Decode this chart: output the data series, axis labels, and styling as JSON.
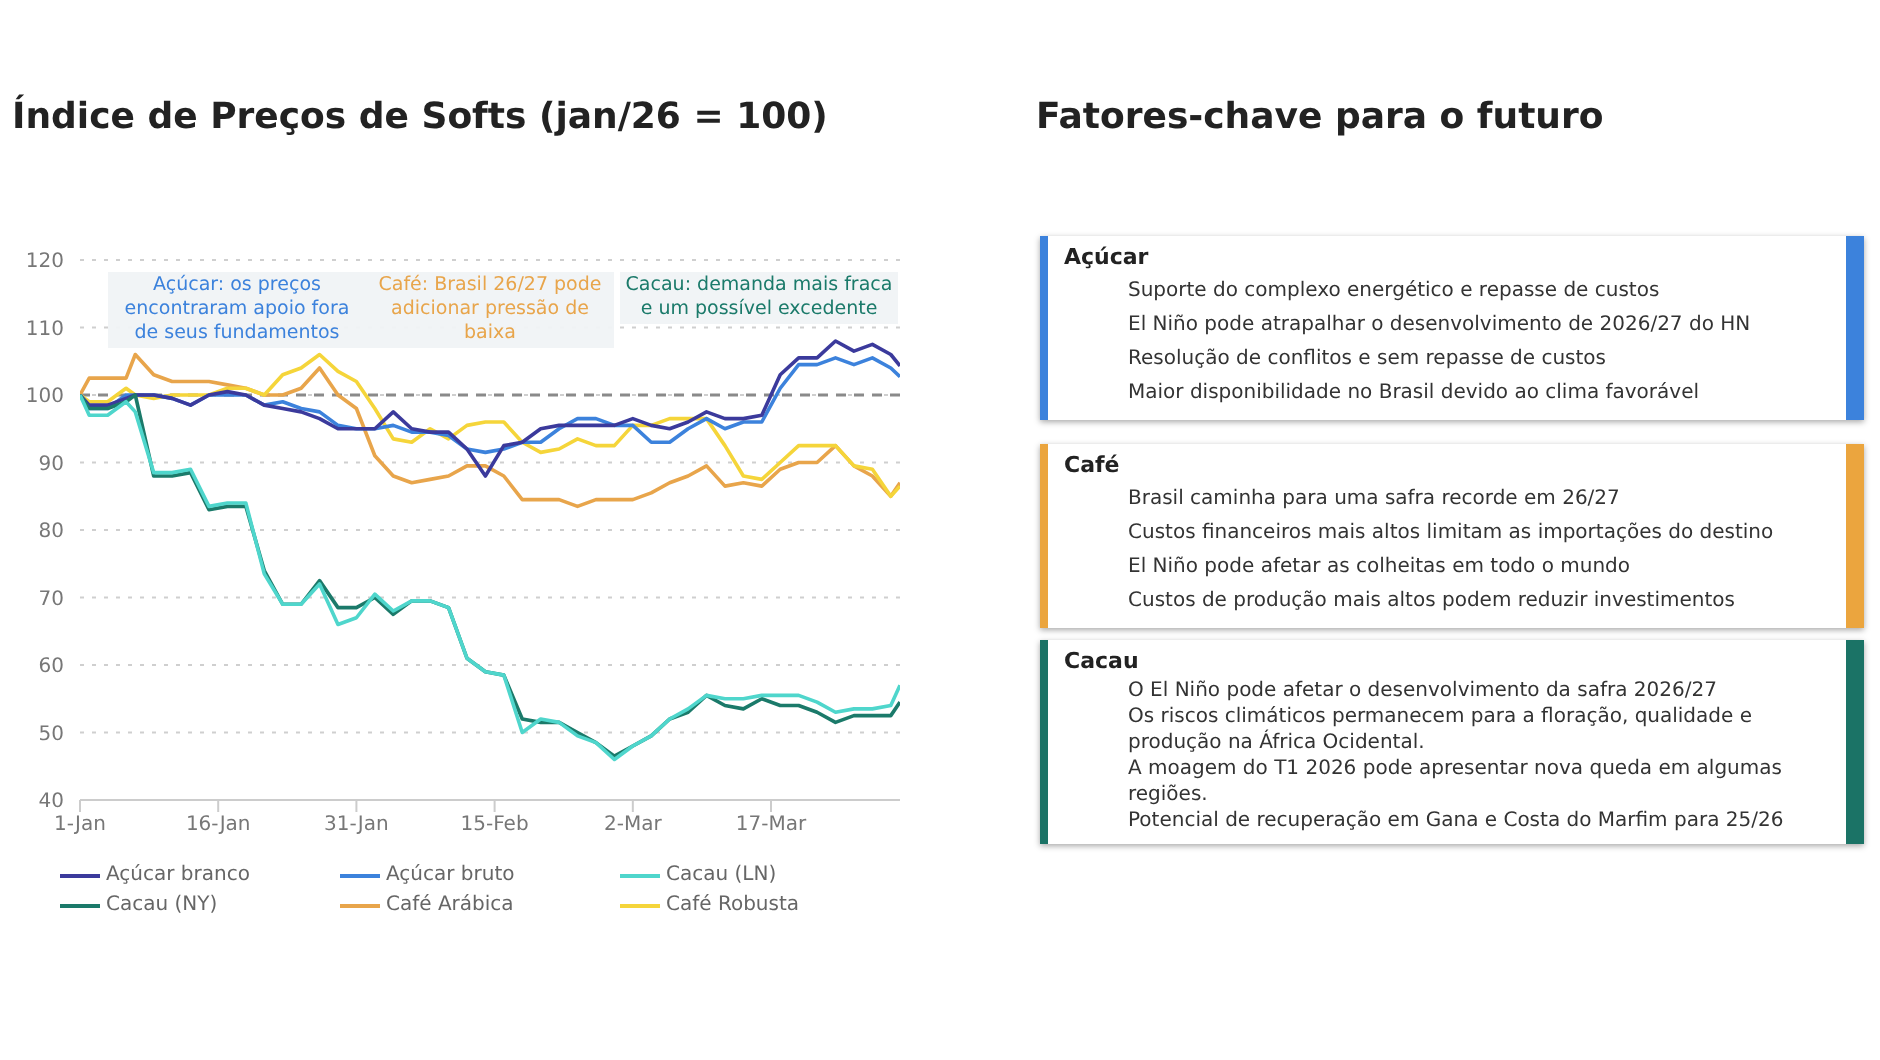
{
  "chart_data": [
    {
      "type": "line",
      "title": "Índice de Preços de Softs (jan/26 = 100)",
      "x": [
        "2026-01-01",
        "2026-01-02",
        "2026-01-04",
        "2026-01-06",
        "2026-01-07",
        "2026-01-09",
        "2026-01-11",
        "2026-01-13",
        "2026-01-15",
        "2026-01-17",
        "2026-01-19",
        "2026-01-21",
        "2026-01-23",
        "2026-01-25",
        "2026-01-27",
        "2026-01-29",
        "2026-01-31",
        "2026-02-02",
        "2026-02-04",
        "2026-02-06",
        "2026-02-08",
        "2026-02-10",
        "2026-02-12",
        "2026-02-14",
        "2026-02-16",
        "2026-02-18",
        "2026-02-20",
        "2026-02-22",
        "2026-02-24",
        "2026-02-26",
        "2026-02-28",
        "2026-03-02",
        "2026-03-04",
        "2026-03-06",
        "2026-03-08",
        "2026-03-10",
        "2026-03-12",
        "2026-03-14",
        "2026-03-16",
        "2026-03-18",
        "2026-03-20",
        "2026-03-22",
        "2026-03-24",
        "2026-03-26",
        "2026-03-28",
        "2026-03-30",
        "2026-03-31"
      ],
      "series": [
        {
          "name": "Café Arábica",
          "color": "#e8a54b",
          "values": [
            100,
            102.5,
            102.5,
            102.5,
            106,
            103,
            102,
            102,
            102,
            101.5,
            101,
            100,
            100,
            101,
            104,
            100,
            98,
            91,
            88,
            87,
            87.5,
            88,
            89.5,
            89.5,
            88,
            84.5,
            84.5,
            84.5,
            83.5,
            84.5,
            84.5,
            84.5,
            85.5,
            87,
            88,
            89.5,
            86.5,
            87,
            86.5,
            89,
            90,
            90,
            92.5,
            89.5,
            88,
            85,
            87
          ]
        },
        {
          "name": "Café Robusta",
          "color": "#f5d53a",
          "values": [
            100,
            99,
            99,
            101,
            100,
            99.5,
            100,
            100,
            100,
            101,
            101,
            100,
            103,
            104,
            106,
            103.5,
            102,
            98,
            93.5,
            93,
            95,
            93.5,
            95.5,
            96,
            96,
            93,
            91.5,
            92,
            93.5,
            92.5,
            92.5,
            95.5,
            95.5,
            96.5,
            96.5,
            96.5,
            92.5,
            88,
            87.5,
            90,
            92.5,
            92.5,
            92.5,
            89.5,
            89,
            85,
            86.5
          ]
        },
        {
          "name": "Açúcar bruto",
          "color": "#3c82dc",
          "values": [
            100,
            98,
            98,
            100,
            100,
            100,
            99.5,
            98.5,
            100,
            100,
            100,
            98.5,
            99,
            98,
            97.5,
            95.5,
            95,
            95,
            95.5,
            94.5,
            94.5,
            94,
            92,
            91.5,
            92,
            93,
            93,
            95,
            96.5,
            96.5,
            95.5,
            95.5,
            93,
            93,
            95,
            96.5,
            95,
            96,
            96,
            101,
            104.5,
            104.5,
            105.5,
            104.5,
            105.5,
            104,
            102.7
          ]
        },
        {
          "name": "Açúcar branco",
          "color": "#3b3a9c",
          "values": [
            100,
            98.5,
            98.5,
            99.5,
            100,
            100,
            99.5,
            98.5,
            100,
            100.5,
            100,
            98.5,
            98,
            97.5,
            96.5,
            95,
            95,
            95,
            97.5,
            95,
            94.5,
            94.5,
            92,
            88,
            92.5,
            93,
            95,
            95.5,
            95.5,
            95.5,
            95.5,
            96.5,
            95.5,
            95,
            96,
            97.5,
            96.5,
            96.5,
            97,
            103,
            105.5,
            105.5,
            108,
            106.5,
            107.5,
            106,
            104.3
          ]
        },
        {
          "name": "Cacau (NY)",
          "color": "#1b7a6a",
          "values": [
            100,
            98,
            98,
            99,
            100,
            88,
            88,
            88.5,
            83,
            83.5,
            83.5,
            74,
            69,
            69,
            72.5,
            68.5,
            68.5,
            70,
            67.5,
            69.5,
            69.5,
            68.5,
            61,
            59,
            58.5,
            52,
            51.5,
            51.5,
            50,
            48.5,
            46.5,
            48,
            49.5,
            52,
            53,
            55.5,
            54,
            53.5,
            55,
            54,
            54,
            53,
            51.5,
            52.5,
            52.5,
            52.5,
            54.5
          ]
        },
        {
          "name": "Cacau (LN)",
          "color": "#4fd6cc",
          "values": [
            100,
            97,
            97,
            99,
            97.5,
            88.5,
            88.5,
            89,
            83.5,
            84,
            84,
            73.5,
            69,
            69,
            72,
            66,
            67,
            70.5,
            68,
            69.5,
            69.5,
            68.5,
            61,
            59,
            58.5,
            50,
            52,
            51.5,
            49.5,
            48.5,
            46,
            48,
            49.5,
            52,
            53.5,
            55.5,
            55,
            55,
            55.5,
            55.5,
            55.5,
            54.5,
            53,
            53.5,
            53.5,
            54,
            57
          ]
        }
      ],
      "xlim": [
        "2026-01-01",
        "2026-03-31"
      ],
      "xticks": [
        {
          "value": "2026-01-01",
          "label": "1-Jan"
        },
        {
          "value": "2026-01-16",
          "label": "16-Jan"
        },
        {
          "value": "2026-01-31",
          "label": "31-Jan"
        },
        {
          "value": "2026-02-15",
          "label": "15-Feb"
        },
        {
          "value": "2026-03-02",
          "label": "2-Mar"
        },
        {
          "value": "2026-03-17",
          "label": "17-Mar"
        }
      ],
      "ylim": [
        40,
        120
      ],
      "yticks": [
        40,
        50,
        60,
        70,
        80,
        90,
        100,
        110,
        120
      ],
      "grid": "y",
      "legend": "bottom",
      "marker": "none",
      "line_style": "solid",
      "ref_lines": [
        {
          "axis": "y",
          "value": 100,
          "color": "#8a8a8a",
          "line_style": "dashed"
        }
      ],
      "annotations": [
        "Açúcar: os preços encontraram apoio fora de seus fundamentos",
        "Café: Brasil 26/27 pode adicionar pressão de baixa",
        "Cacau: demanda mais fraca e um possível excedente"
      ]
    },
    {
      "type": "other",
      "title": "Fatores-chave para o futuro"
    },
    {
      "type": "other",
      "title": "Açúcar",
      "color": "#3c82dc",
      "annotations": [
        "Suporte do complexo energético e repasse de custos",
        "El Niño pode atrapalhar o desenvolvimento de 2026/27 do HN",
        "Resolução de conflitos e sem repasse de custos",
        "Maior disponibilidade no Brasil devido ao clima favorável"
      ]
    },
    {
      "type": "other",
      "title": "Café",
      "color": "#eba53e",
      "annotations": [
        "Brasil caminha para uma safra recorde em 26/27",
        "Custos financeiros mais altos limitam as importações do destino",
        "El Niño pode afetar as colheitas em todo o mundo",
        "Custos de produção mais altos podem reduzir investimentos"
      ]
    },
    {
      "type": "other",
      "title": "Cacau",
      "color": "#1b7366",
      "annotations": [
        "O El Niño pode afetar o desenvolvimento da safra 2026/27",
        "Os riscos climáticos permanecem para a floração, qualidade e produção na África Ocidental.",
        "A moagem do T1 2026 pode apresentar nova queda em algumas regiões.",
        "Potencial de recuperação em Gana e Costa do Marfim para 25/26"
      ]
    }
  ]
}
